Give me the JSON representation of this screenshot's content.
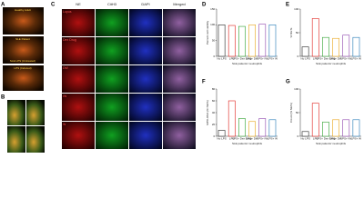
{
  "panel_labels": [
    "A",
    "B",
    "C",
    "D",
    "E",
    "F",
    "G"
  ],
  "panel_a_labels": [
    "Healthy Adult",
    "SLE Patient",
    "SLE LPS (Untreated)",
    "LPS (Induced)"
  ],
  "panel_c": {
    "columns": [
      "NE",
      "CitH3",
      "DAPI",
      "Merged"
    ],
    "rows": [
      "Lupus",
      "Dex Drug",
      "DW",
      "IW",
      "W"
    ]
  },
  "chart_data": [
    {
      "type": "bar",
      "ylabel": "Percent cell viability",
      "xlabel": "SLE patients' neutrophils",
      "categories": [
        "No LPS",
        "LPS",
        "LPS+ Dex Drug",
        "LPS+ DW",
        "LPS+ IW",
        "LPS+ W"
      ],
      "values": [
        100,
        98,
        95,
        100,
        102,
        100
      ],
      "colors": [
        "#222222",
        "#e0201b",
        "#2ca02c",
        "#e8a317",
        "#8e44ad",
        "#1f77b4"
      ],
      "ylim": [
        0,
        150
      ],
      "yticks": [
        0,
        50,
        100,
        150
      ]
    },
    {
      "type": "bar",
      "ylabel": "% NETs",
      "xlabel": "SLE patients' neutrophils",
      "categories": [
        "No LPS",
        "LPS",
        "LPS+ Dex Drug",
        "LPS+ DW",
        "LPS+ IW",
        "LPS+ W"
      ],
      "values": [
        20,
        80,
        40,
        38,
        45,
        40
      ],
      "colors": [
        "#222222",
        "#e0201b",
        "#2ca02c",
        "#e8a317",
        "#8e44ad",
        "#1f77b4"
      ],
      "ylim": [
        0,
        100
      ],
      "yticks": [
        0,
        50,
        100
      ]
    },
    {
      "type": "bar",
      "ylabel": "MPO-DNA (% NETs)",
      "xlabel": "SLE patients' neutrophils",
      "categories": [
        "No LPS",
        "LPS",
        "LPS+ Dex Drug",
        "LPS+ DW",
        "LPS+ IW",
        "LPS+ W"
      ],
      "values": [
        10,
        60,
        30,
        25,
        30,
        28
      ],
      "colors": [
        "#222222",
        "#e0201b",
        "#2ca02c",
        "#e8a317",
        "#8e44ad",
        "#1f77b4"
      ],
      "ylim": [
        0,
        80
      ],
      "yticks": [
        0,
        20,
        40,
        60,
        80
      ]
    },
    {
      "type": "bar",
      "ylabel": "Cit-H3 (% NETs)",
      "xlabel": "SLE patients' neutrophils",
      "categories": [
        "No LPS",
        "LPS",
        "LPS+ Dex Drug",
        "LPS+ DW",
        "LPS+ IW",
        "LPS+ W"
      ],
      "values": [
        10,
        70,
        30,
        35,
        35,
        35
      ],
      "colors": [
        "#222222",
        "#e0201b",
        "#2ca02c",
        "#e8a317",
        "#8e44ad",
        "#1f77b4"
      ],
      "ylim": [
        0,
        100
      ],
      "yticks": [
        0,
        50,
        100
      ]
    }
  ]
}
